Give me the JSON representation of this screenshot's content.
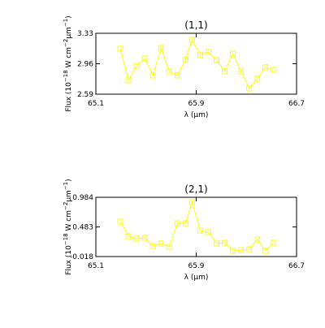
{
  "chart_data": [
    {
      "type": "line",
      "title": "(1,1)",
      "xlabel": "λ (μm)",
      "ylabel": [
        "Flux (10",
        "−18",
        " W cm",
        "−2",
        "μm",
        "−1",
        ")"
      ],
      "xlim": [
        65.1,
        66.7
      ],
      "xticks": [
        65.1,
        65.9,
        66.7
      ],
      "ylim": [
        2.59,
        3.33
      ],
      "yticks": [
        2.59,
        2.96,
        3.33
      ],
      "series": [
        {
          "color": "#ffff00",
          "x": [
            65.295,
            65.36,
            65.425,
            65.49,
            65.555,
            65.62,
            65.685,
            65.75,
            65.815,
            65.867,
            65.932,
            65.997,
            66.062,
            66.127,
            66.192,
            66.257,
            66.322,
            66.387,
            66.452,
            66.517
          ],
          "values": [
            3.143,
            2.758,
            2.935,
            3.024,
            2.817,
            3.152,
            2.866,
            2.817,
            3.014,
            3.251,
            3.064,
            3.103,
            3.004,
            2.866,
            3.083,
            2.866,
            2.659,
            2.777,
            2.916,
            2.886
          ]
        }
      ]
    },
    {
      "type": "line",
      "title": "(2,1)",
      "xlabel": "λ (μm)",
      "ylabel": [
        "Flux (10",
        "−18",
        " W cm",
        "−2",
        "μm",
        "−1",
        ")"
      ],
      "xlim": [
        65.1,
        66.7
      ],
      "xticks": [
        65.1,
        65.9,
        66.7
      ],
      "ylim": [
        -0.018,
        0.984
      ],
      "yticks": [
        -0.018,
        0.483,
        0.984
      ],
      "series": [
        {
          "color": "#ffff00",
          "x": [
            65.295,
            65.36,
            65.425,
            65.49,
            65.555,
            65.62,
            65.685,
            65.75,
            65.815,
            65.867,
            65.932,
            65.997,
            66.062,
            66.127,
            66.192,
            66.257,
            66.322,
            66.387,
            66.452,
            66.517
          ],
          "values": [
            0.572,
            0.325,
            0.284,
            0.298,
            0.16,
            0.202,
            0.147,
            0.545,
            0.545,
            0.902,
            0.421,
            0.394,
            0.202,
            0.215,
            0.078,
            0.092,
            0.106,
            0.27,
            0.078,
            0.215
          ]
        }
      ]
    }
  ]
}
